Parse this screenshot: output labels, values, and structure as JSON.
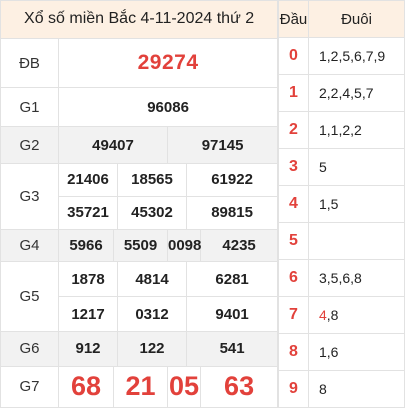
{
  "title": "Xổ số miền Bắc 4-11-2024 thứ 2",
  "rows": {
    "db": {
      "label": "ĐB",
      "numbers": [
        "29274"
      ]
    },
    "g1": {
      "label": "G1",
      "numbers": [
        "96086"
      ]
    },
    "g2": {
      "label": "G2",
      "numbers": [
        "49407",
        "97145"
      ]
    },
    "g3": {
      "label": "G3",
      "numbers": [
        "21406",
        "18565",
        "61922",
        "35721",
        "45302",
        "89815"
      ]
    },
    "g4": {
      "label": "G4",
      "numbers": [
        "5966",
        "5509",
        "0098",
        "4235"
      ]
    },
    "g5": {
      "label": "G5",
      "numbers": [
        "1878",
        "4814",
        "6281",
        "1217",
        "0312",
        "9401"
      ]
    },
    "g6": {
      "label": "G6",
      "numbers": [
        "912",
        "122",
        "541"
      ]
    },
    "g7": {
      "label": "G7",
      "numbers": [
        "68",
        "21",
        "05",
        "63"
      ]
    }
  },
  "headtail": {
    "head_label": "Đầu",
    "tail_label": "Đuôi",
    "rows": [
      {
        "head": "0",
        "tail": "1,2,5,6,7,9"
      },
      {
        "head": "1",
        "tail": "2,2,4,5,7"
      },
      {
        "head": "2",
        "tail": "1,1,2,2"
      },
      {
        "head": "3",
        "tail": "5"
      },
      {
        "head": "4",
        "tail": "1,5"
      },
      {
        "head": "5",
        "tail": ""
      },
      {
        "head": "6",
        "tail": "3,5,6,8"
      },
      {
        "head": "7",
        "tail_hl": "4",
        "tail_rest": ",8"
      },
      {
        "head": "8",
        "tail": "1,6"
      },
      {
        "head": "9",
        "tail": "8"
      }
    ]
  },
  "colors": {
    "accent": "#e2413b",
    "header_bg": "#fdf0e3",
    "shade_bg": "#f2f2f2"
  }
}
